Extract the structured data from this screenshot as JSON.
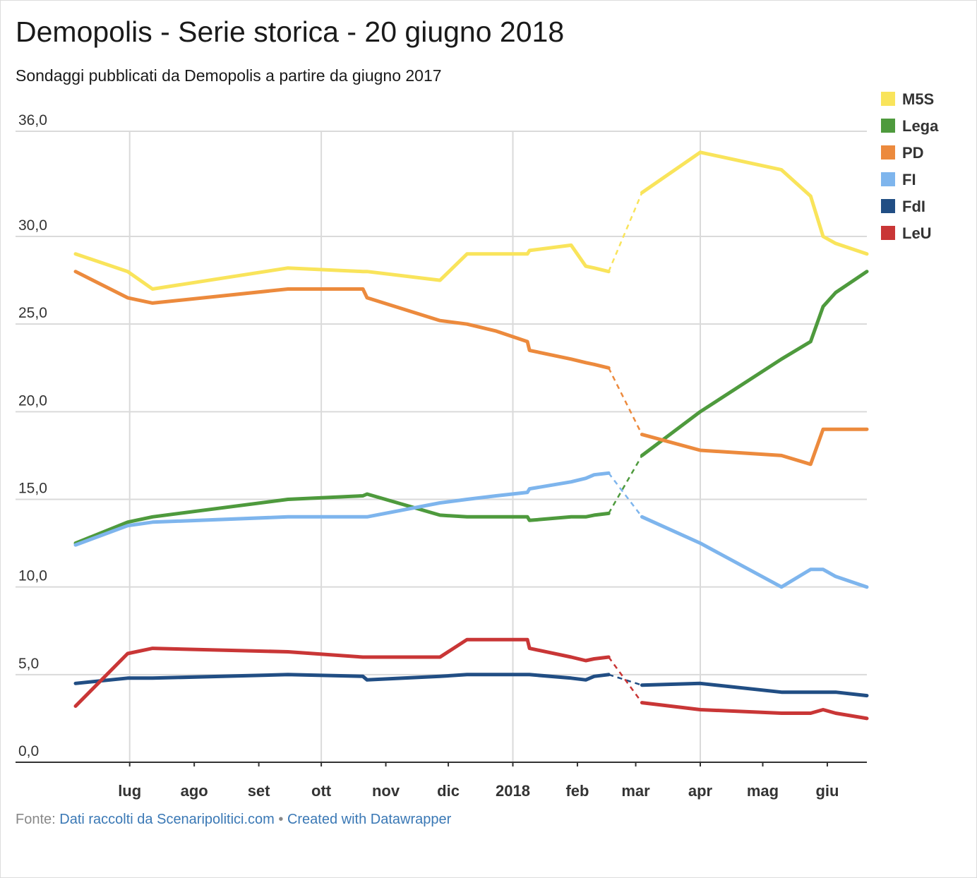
{
  "title": "Demopolis - Serie storica - 20 giugno 2018",
  "subtitle": "Sondaggi pubblicati da Demopolis a partire da giugno 2017",
  "footer": {
    "prefix": "Fonte: ",
    "source": "Dati raccolti da Scenaripolitici.com",
    "separator": " • ",
    "credit": "Created with Datawrapper"
  },
  "chart_data": {
    "type": "line",
    "ylim": [
      0,
      36
    ],
    "yticks": [
      {
        "value": 0,
        "label": "0,0"
      },
      {
        "value": 5,
        "label": "5,0"
      },
      {
        "value": 10,
        "label": "10,0"
      },
      {
        "value": 15,
        "label": "15,0"
      },
      {
        "value": 20,
        "label": "20,0"
      },
      {
        "value": 25,
        "label": "25,0"
      },
      {
        "value": 30,
        "label": "30,0"
      },
      {
        "value": 36,
        "label": "36,0"
      }
    ],
    "xlim": [
      "2017-06-05",
      "2018-06-20"
    ],
    "xticks": [
      {
        "date": "2017-07-01",
        "label": "lug"
      },
      {
        "date": "2017-08-01",
        "label": "ago"
      },
      {
        "date": "2017-09-01",
        "label": "set"
      },
      {
        "date": "2017-10-01",
        "label": "ott"
      },
      {
        "date": "2017-11-01",
        "label": "nov"
      },
      {
        "date": "2017-12-01",
        "label": "dic"
      },
      {
        "date": "2018-01-01",
        "label": "2018"
      },
      {
        "date": "2018-02-01",
        "label": "feb"
      },
      {
        "date": "2018-03-01",
        "label": "mar"
      },
      {
        "date": "2018-04-01",
        "label": "apr"
      },
      {
        "date": "2018-05-01",
        "label": "mag"
      },
      {
        "date": "2018-06-01",
        "label": "giu"
      }
    ],
    "gap": [
      "2018-02-16",
      "2018-03-04"
    ],
    "grid": true,
    "legend_position": "top-right",
    "x": [
      "2017-06-05",
      "2017-06-30",
      "2017-07-12",
      "2017-09-15",
      "2017-10-21",
      "2017-10-23",
      "2017-11-27",
      "2017-12-10",
      "2017-12-24",
      "2018-01-08",
      "2018-01-09",
      "2018-01-29",
      "2018-02-05",
      "2018-02-09",
      "2018-02-16",
      "2018-03-04",
      "2018-04-01",
      "2018-05-10",
      "2018-05-24",
      "2018-05-30",
      "2018-06-05",
      "2018-06-20"
    ],
    "series": [
      {
        "name": "M5S",
        "color": "#f9e45b",
        "values": [
          29,
          28,
          27,
          28.2,
          28,
          28,
          27.5,
          29,
          29,
          29,
          29.2,
          29.5,
          28.3,
          28.2,
          28,
          32.5,
          34.8,
          33.8,
          32.3,
          30,
          29.6,
          29
        ]
      },
      {
        "name": "Lega",
        "color": "#4e9a3d",
        "values": [
          12.5,
          13.7,
          14,
          15,
          15.2,
          15.3,
          14.1,
          14,
          14,
          14,
          13.8,
          14,
          14,
          14.1,
          14.2,
          17.5,
          20,
          23,
          24,
          26,
          26.8,
          28
        ]
      },
      {
        "name": "PD",
        "color": "#ec8a3d",
        "values": [
          28,
          26.5,
          26.2,
          27,
          27,
          26.5,
          25.2,
          25,
          24.6,
          24,
          23.5,
          23,
          22.8,
          22.7,
          22.5,
          18.7,
          17.8,
          17.5,
          17,
          19,
          19,
          19
        ]
      },
      {
        "name": "FI",
        "color": "#7eb5ed",
        "values": [
          12.4,
          13.5,
          13.7,
          14,
          14,
          14,
          14.8,
          15,
          15.2,
          15.4,
          15.6,
          16,
          16.2,
          16.4,
          16.5,
          14,
          12.5,
          10,
          11,
          11,
          10.6,
          10
        ]
      },
      {
        "name": "FdI",
        "color": "#214e84",
        "values": [
          4.5,
          4.8,
          4.8,
          5,
          4.9,
          4.7,
          4.9,
          5,
          5,
          5,
          5,
          4.8,
          4.7,
          4.9,
          5,
          4.4,
          4.5,
          4,
          4,
          4,
          4,
          3.8
        ]
      },
      {
        "name": "LeU",
        "color": "#c93636",
        "values": [
          3.2,
          6.2,
          6.5,
          6.3,
          6,
          6,
          6,
          7,
          7,
          7,
          6.5,
          6,
          5.8,
          5.9,
          6,
          3.4,
          3,
          2.8,
          2.8,
          3,
          2.8,
          2.5
        ]
      }
    ]
  }
}
